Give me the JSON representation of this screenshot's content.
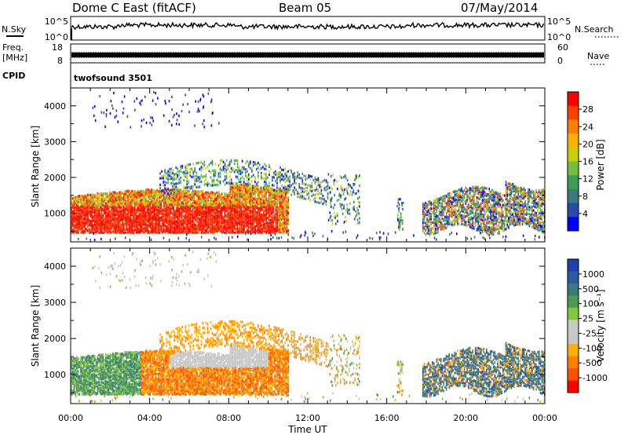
{
  "header": {
    "station": "Dome C East (fitACF)",
    "beam": "Beam 05",
    "date": "07/May/2014"
  },
  "noise_panel": {
    "left_label": "N.Sky",
    "right_label": "N.Search",
    "left_ticks": [
      "10^5",
      "10^0"
    ],
    "right_ticks": [
      "10^5",
      "10^0"
    ]
  },
  "freq_panel": {
    "left_label_1": "Freq.",
    "left_label_2": "[MHz]",
    "right_label": "Nave",
    "left_ticks": [
      "18",
      "8"
    ],
    "right_ticks": [
      "60",
      "0"
    ]
  },
  "cpid": {
    "label": "CPID",
    "value": "twofsound 3501"
  },
  "chart_data": [
    {
      "type": "heatmap",
      "name": "power",
      "ylabel": "Slant Range [km]",
      "ylim": [
        200,
        4500
      ],
      "yticks": [
        "1000",
        "2000",
        "3000",
        "4000"
      ],
      "xlim": [
        0,
        24
      ],
      "colorbar": {
        "label": "Power [dB]",
        "ticks": [
          "28",
          "24",
          "20",
          "16",
          "12",
          "8",
          "4"
        ],
        "colors": [
          "#ff0000",
          "#ff4000",
          "#ff8000",
          "#ffb000",
          "#c8d000",
          "#6fc040",
          "#3a9e5a",
          "#3a7a7a",
          "#2a4ab0",
          "#0000ff"
        ]
      }
    },
    {
      "type": "heatmap",
      "name": "velocity",
      "ylabel": "Slant Range [km]",
      "ylim": [
        200,
        4500
      ],
      "yticks": [
        "1000",
        "2000",
        "3000",
        "4000"
      ],
      "xlim": [
        0,
        24
      ],
      "colorbar": {
        "label": "Velocity [m s⁻¹]",
        "ticks": [
          "1000",
          "500",
          "100",
          "25",
          "-25",
          "-100",
          "-500",
          "-1000"
        ],
        "colors": [
          "#2040b0",
          "#2a5aa0",
          "#3a7a7a",
          "#4a9a50",
          "#80c840",
          "#c8c8c8",
          "#c8c8c8",
          "#ffb000",
          "#ff8000",
          "#ff5000",
          "#ff0000"
        ]
      }
    }
  ],
  "x_axis": {
    "label": "Time UT",
    "ticks": [
      "00:00",
      "04:00",
      "08:00",
      "12:00",
      "16:00",
      "20:00",
      "00:00"
    ]
  }
}
